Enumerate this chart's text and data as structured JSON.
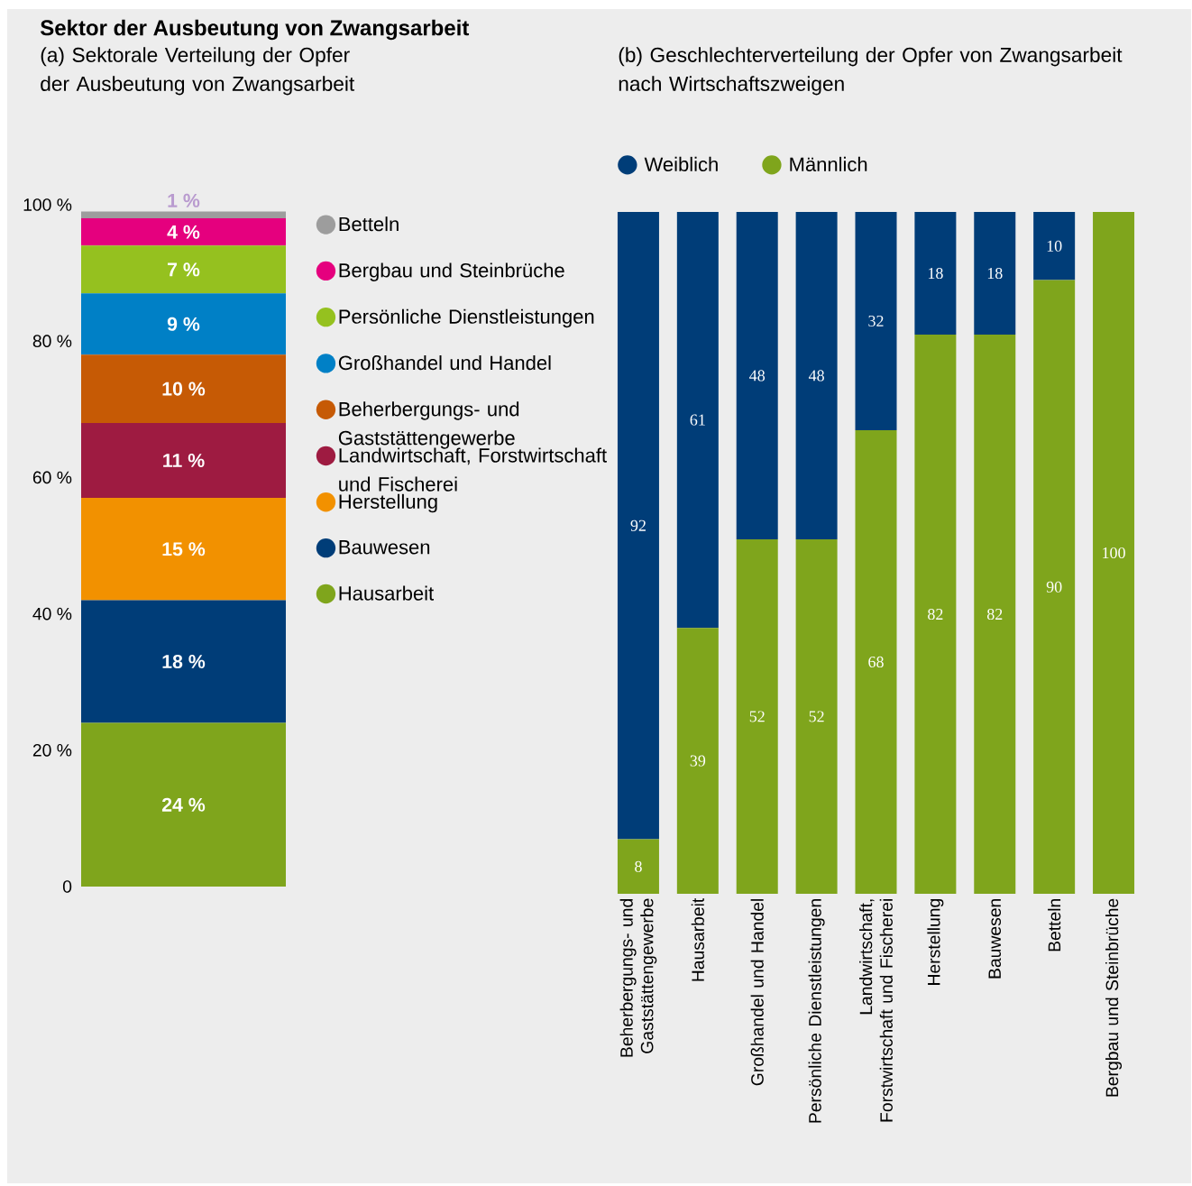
{
  "chart_data": [
    {
      "type": "bar",
      "title": "Sektor der Ausbeutung von Zwangsarbeit",
      "subtitle": "(a) Sektorale Verteilung der Opfer der Ausbeutung von Zwangsarbeit",
      "stacked": true,
      "legend": "right",
      "categories": [
        null
      ],
      "ylim": [
        0,
        100
      ],
      "yticks": [
        0,
        {
          "value": 20,
          "label": "20 %"
        },
        {
          "value": 40,
          "label": "40 %"
        },
        {
          "value": 60,
          "label": "60 %"
        },
        {
          "value": 80,
          "label": "80 %"
        },
        {
          "value": 100,
          "label": "100 %"
        }
      ],
      "series": [
        {
          "name": "Hausarbeit",
          "color": "#7fa51c",
          "values": [
            24
          ],
          "value_labels": [
            "24 %"
          ]
        },
        {
          "name": "Bauwesen",
          "color": "#003d78",
          "values": [
            18
          ],
          "value_labels": [
            "18 %"
          ]
        },
        {
          "name": "Herstellung",
          "color": "#f29100",
          "values": [
            15
          ],
          "value_labels": [
            "15 %"
          ]
        },
        {
          "name": "Landwirtschaft, Forstwirtschaft und Fischerei",
          "color": "#9e1b41",
          "values": [
            11
          ],
          "value_labels": [
            "11 %"
          ]
        },
        {
          "name": "Beherbergungs- und Gaststättengewerbe",
          "color": "#c65a05",
          "values": [
            10
          ],
          "value_labels": [
            "10 %"
          ]
        },
        {
          "name": "Großhandel und Handel",
          "color": "#0080c6",
          "values": [
            9
          ],
          "value_labels": [
            "9 %"
          ]
        },
        {
          "name": "Persönliche Dienstleistungen",
          "color": "#95c11f",
          "values": [
            7
          ],
          "value_labels": [
            "7 %"
          ]
        },
        {
          "name": "Bergbau und Steinbrüche",
          "color": "#e5007e",
          "values": [
            4
          ],
          "value_labels": [
            "4 %"
          ]
        },
        {
          "name": "Betteln",
          "color": "#9d9d9d",
          "values": [
            1
          ],
          "value_labels": [
            "1 %"
          ]
        }
      ]
    },
    {
      "type": "bar",
      "subtitle": "(b) Geschlechterverteilung der Opfer von Zwangsarbeit nach Wirtschaftszweigen",
      "stacked": true,
      "legend": "top",
      "data_labels": true,
      "tick_labels": "x",
      "categories": [
        "Beherbergungs- und Gaststättengewerbe",
        "Hausarbeit",
        "Großhandel und Handel",
        "Persönliche Dienstleistungen",
        "Landwirtschaft, Forstwirtschaft und Fischerei",
        "Herstellung",
        "Bauwesen",
        "Betteln",
        "Bergbau und Steinbrüche"
      ],
      "series": [
        {
          "name": "Männlich",
          "color": "#7fa51c",
          "values": [
            8,
            39,
            52,
            52,
            68,
            82,
            82,
            90,
            100
          ]
        },
        {
          "name": "Weiblich",
          "color": "#003d78",
          "values": [
            92,
            61,
            48,
            48,
            32,
            18,
            18,
            10,
            null
          ]
        }
      ]
    }
  ]
}
